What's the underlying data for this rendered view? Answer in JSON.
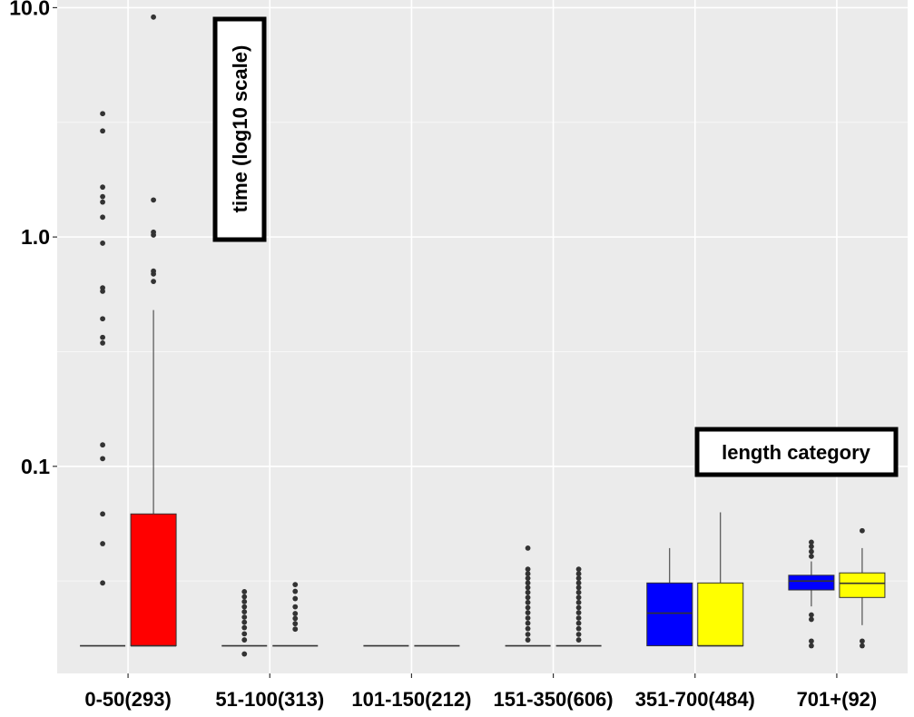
{
  "chart_data": {
    "type": "boxplot",
    "title": "",
    "xlabel": "length category",
    "ylabel": "time (log10 scale)",
    "yscale": "log10",
    "ylim": [
      0.0125,
      10.8
    ],
    "yticks": [
      0.1,
      1.0,
      10.0
    ],
    "ytick_labels": [
      "0.1",
      "1.0",
      "10.0"
    ],
    "grid": true,
    "categories": [
      "0-50(293)",
      "51-100(313)",
      "101-150(212)",
      "151-350(606)",
      "351-700(484)",
      "701+(92)"
    ],
    "boxes": [
      {
        "category": "0-50(293)",
        "fill": "#FF0000",
        "q1": 0.0165,
        "median": 0.0165,
        "q3": 0.0165,
        "whisker_low": 0.0165,
        "whisker_high": 0.0165,
        "outliers": [
          0.031,
          0.046,
          0.062,
          0.108,
          0.124,
          0.345,
          0.365,
          0.44,
          0.58,
          0.6,
          0.94,
          1.22,
          1.42,
          1.5,
          1.65,
          2.9,
          3.45
        ]
      },
      {
        "category": "0-50(293)",
        "fill": "#FF0000",
        "q1": 0.0165,
        "median": 0.0165,
        "q3": 0.062,
        "whisker_low": 0.0165,
        "whisker_high": 0.48,
        "outliers": [
          0.64,
          0.69,
          0.71,
          1.02,
          1.05,
          1.45,
          9.1
        ]
      },
      {
        "category": "51-100(313)",
        "fill": "#FF0000",
        "q1": 0.0165,
        "median": 0.0165,
        "q3": 0.0165,
        "whisker_low": 0.0165,
        "whisker_high": 0.0165,
        "outliers": [
          0.0152,
          0.0175,
          0.0186,
          0.0198,
          0.0209,
          0.022,
          0.0232,
          0.0244,
          0.0257,
          0.027,
          0.0284
        ]
      },
      {
        "category": "51-100(313)",
        "fill": "#FF0000",
        "q1": 0.0165,
        "median": 0.0165,
        "q3": 0.0165,
        "whisker_low": 0.0165,
        "whisker_high": 0.0165,
        "outliers": [
          0.0195,
          0.0206,
          0.0217,
          0.0228,
          0.0244,
          0.0265,
          0.0285,
          0.0305
        ]
      },
      {
        "category": "101-150(212)",
        "fill": "#FF0000",
        "q1": 0.0165,
        "median": 0.0165,
        "q3": 0.0165,
        "whisker_low": 0.0165,
        "whisker_high": 0.0165,
        "outliers": []
      },
      {
        "category": "101-150(212)",
        "fill": "#FF0000",
        "q1": 0.0165,
        "median": 0.0165,
        "q3": 0.0165,
        "whisker_low": 0.0165,
        "whisker_high": 0.0165,
        "outliers": []
      },
      {
        "category": "151-350(606)",
        "fill": "#FF0000",
        "q1": 0.0165,
        "median": 0.0165,
        "q3": 0.0165,
        "whisker_low": 0.0165,
        "whisker_high": 0.0165,
        "outliers": [
          0.0175,
          0.0185,
          0.0196,
          0.0207,
          0.0218,
          0.023,
          0.0242,
          0.0255,
          0.0268,
          0.0282,
          0.0296,
          0.031,
          0.0325,
          0.034,
          0.0356,
          0.044
        ]
      },
      {
        "category": "151-350(606)",
        "fill": "#FF0000",
        "q1": 0.0165,
        "median": 0.0165,
        "q3": 0.0165,
        "whisker_low": 0.0165,
        "whisker_high": 0.0165,
        "outliers": [
          0.0175,
          0.0185,
          0.0196,
          0.0207,
          0.0218,
          0.023,
          0.0242,
          0.0255,
          0.0268,
          0.0282,
          0.0296,
          0.031,
          0.0325,
          0.034,
          0.0356
        ]
      },
      {
        "category": "351-700(484)",
        "fill": "#0000FF",
        "q1": 0.0165,
        "median": 0.0229,
        "q3": 0.031,
        "whisker_low": 0.0165,
        "whisker_high": 0.044,
        "outliers": []
      },
      {
        "category": "351-700(484)",
        "fill": "#FFFF00",
        "q1": 0.0165,
        "median": 0.0165,
        "q3": 0.031,
        "whisker_low": 0.0165,
        "whisker_high": 0.063,
        "outliers": []
      },
      {
        "category": "701+(92)",
        "fill": "#0000FF",
        "q1": 0.0289,
        "median": 0.0316,
        "q3": 0.0335,
        "whisker_low": 0.0245,
        "whisker_high": 0.0385,
        "outliers": [
          0.0165,
          0.0173,
          0.0215,
          0.0225,
          0.0405,
          0.0425,
          0.0447,
          0.0467
        ]
      },
      {
        "category": "701+(92)",
        "fill": "#FFFF00",
        "q1": 0.0268,
        "median": 0.0309,
        "q3": 0.0343,
        "whisker_low": 0.0203,
        "whisker_high": 0.044,
        "outliers": [
          0.0165,
          0.0173,
          0.0524
        ]
      }
    ]
  }
}
